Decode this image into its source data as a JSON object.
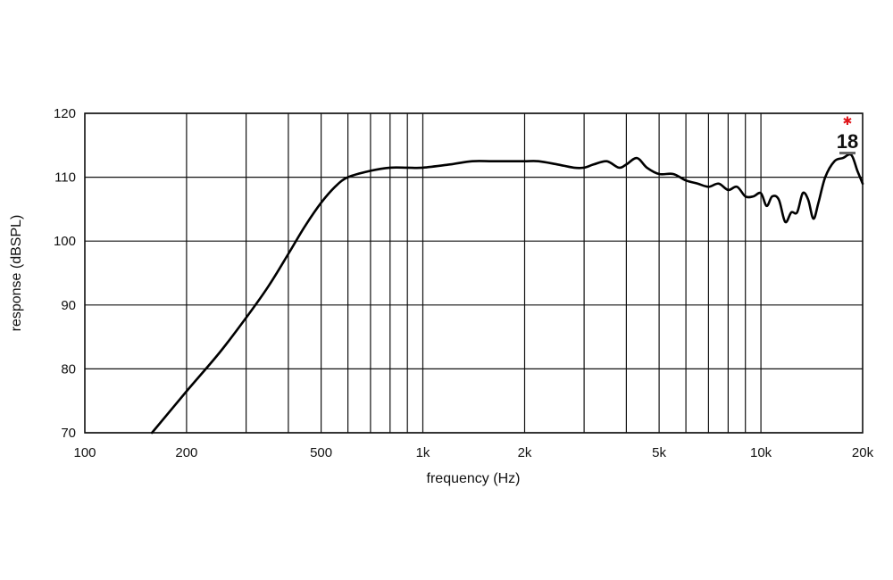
{
  "chart_data": {
    "type": "line",
    "xlabel": "frequency (Hz)",
    "ylabel": "response (dBSPL)",
    "xscale": "log",
    "xlim": [
      100,
      20000
    ],
    "ylim": [
      70,
      120
    ],
    "grid": true,
    "x_tick_labels": [
      {
        "value": 100,
        "label": "100"
      },
      {
        "value": 200,
        "label": "200"
      },
      {
        "value": 500,
        "label": "500"
      },
      {
        "value": 1000,
        "label": "1k"
      },
      {
        "value": 2000,
        "label": "2k"
      },
      {
        "value": 5000,
        "label": "5k"
      },
      {
        "value": 10000,
        "label": "10k"
      },
      {
        "value": 20000,
        "label": "20k"
      }
    ],
    "x_gridlines": [
      200,
      300,
      400,
      500,
      600,
      700,
      800,
      900,
      1000,
      2000,
      3000,
      4000,
      5000,
      6000,
      7000,
      8000,
      9000,
      10000
    ],
    "y_ticks": [
      70,
      80,
      90,
      100,
      110,
      120
    ],
    "series": [
      {
        "x": [
          158,
          200,
          250,
          300,
          350,
          400,
          450,
          500,
          550,
          600,
          700,
          800,
          900,
          1000,
          1200,
          1400,
          1600,
          1800,
          2000,
          2200,
          2500,
          2800,
          3000,
          3200,
          3500,
          3800,
          4000,
          4300,
          4600,
          5000,
          5500,
          6000,
          6500,
          7000,
          7500,
          8000,
          8500,
          9000,
          9500,
          10000,
          10400,
          10800,
          11300,
          11800,
          12300,
          12800,
          13300,
          13800,
          14300,
          14800,
          15500,
          16500,
          17500,
          18500,
          19300,
          20000
        ],
        "y": [
          70,
          76.5,
          82.5,
          88,
          93,
          98,
          102.5,
          106,
          108.5,
          110,
          111,
          111.5,
          111.5,
          111.5,
          112,
          112.5,
          112.5,
          112.5,
          112.5,
          112.5,
          112,
          111.5,
          111.5,
          112,
          112.5,
          111.5,
          112,
          113,
          111.5,
          110.5,
          110.5,
          109.5,
          109,
          108.5,
          109,
          108,
          108.5,
          107,
          107,
          107.5,
          105.5,
          107,
          106.5,
          103,
          104.5,
          104.5,
          107.5,
          106.5,
          103.5,
          106,
          110,
          112.5,
          113,
          113.5,
          111,
          109
        ]
      }
    ],
    "logo": {
      "text": "18",
      "name": "18-sound-logo"
    }
  }
}
